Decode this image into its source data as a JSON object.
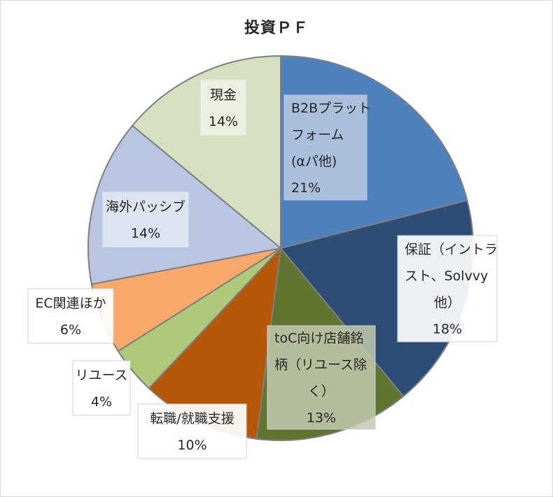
{
  "chart_data": {
    "type": "pie",
    "title": "投資ＰＦ",
    "start_angle_deg": 0,
    "direction": "clockwise",
    "slices": [
      {
        "label_lines": [
          "B2Bプラット",
          "フォーム",
          "(αパ他)"
        ],
        "pct_label": "21%",
        "value": 21,
        "color": "#4f81bd",
        "box_bg": "#bacae2",
        "box_border": "#bacae2"
      },
      {
        "label_lines": [
          "保証（イントラ",
          "スト、Solvvy",
          "他）"
        ],
        "pct_label": "18%",
        "value": 18,
        "color": "#2c4d75",
        "box_bg": "#ffffff",
        "box_border": "#d0d0d0"
      },
      {
        "label_lines": [
          "toC向け店舗銘",
          "柄（リユース除",
          "く）"
        ],
        "pct_label": "13%",
        "value": 13,
        "color": "#5f7530",
        "box_bg": "#c2c9ae",
        "box_border": "#d0d0d0"
      },
      {
        "label_lines": [
          "転職/就職支援"
        ],
        "pct_label": "10%",
        "value": 10,
        "color": "#b65708",
        "box_bg": "#ffffff",
        "box_border": "#d0d0d0"
      },
      {
        "label_lines": [
          "リユース"
        ],
        "pct_label": "4%",
        "value": 4,
        "color": "#afc97a",
        "box_bg": "#ffffff",
        "box_border": "#d0d0d0"
      },
      {
        "label_lines": [
          "EC関連ほか"
        ],
        "pct_label": "6%",
        "value": 6,
        "color": "#f9a96c",
        "box_bg": "#ffffff",
        "box_border": "#d0d0d0"
      },
      {
        "label_lines": [
          "海外パッシブ"
        ],
        "pct_label": "14%",
        "value": 14,
        "color": "#b9c6e2",
        "box_bg": "#e2e8f3",
        "box_border": "#e2e8f3"
      },
      {
        "label_lines": [
          "現金"
        ],
        "pct_label": "14%",
        "value": 14,
        "color": "#d6e0c1",
        "box_bg": "#eef2e5",
        "box_border": "#eef2e5"
      }
    ]
  }
}
